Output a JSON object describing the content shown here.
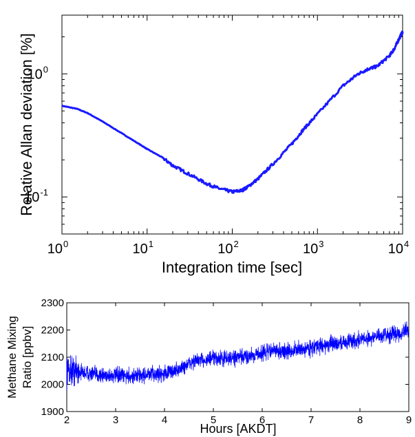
{
  "chart_data": [
    {
      "type": "line",
      "scale": {
        "x": "log",
        "y": "log"
      },
      "xlabel": "Integration time [sec]",
      "ylabel": "Relative Allan deviation [%]",
      "xlim": [
        1,
        10000
      ],
      "ylim": [
        0.05,
        3
      ],
      "x_ticks": [
        {
          "value": 1,
          "base": "10",
          "exp": "0"
        },
        {
          "value": 10,
          "base": "10",
          "exp": "1"
        },
        {
          "value": 100,
          "base": "10",
          "exp": "2"
        },
        {
          "value": 1000,
          "base": "10",
          "exp": "3"
        },
        {
          "value": 10000,
          "base": "10",
          "exp": "4"
        }
      ],
      "y_ticks": [
        {
          "value": 0.1,
          "base": "10",
          "exp": "-1"
        },
        {
          "value": 1,
          "base": "10",
          "exp": "0"
        }
      ],
      "color": "#1a1aff",
      "grid": false,
      "series": [
        {
          "x": [
            1,
            1.5,
            2,
            3,
            5,
            8,
            10,
            15,
            20,
            30,
            50,
            70,
            100,
            130,
            150,
            200,
            300,
            500,
            700,
            1000,
            2000,
            3000,
            4000,
            5000,
            7000,
            8000,
            9000,
            10000
          ],
          "y": [
            0.55,
            0.52,
            0.48,
            0.41,
            0.33,
            0.27,
            0.245,
            0.21,
            0.18,
            0.155,
            0.128,
            0.117,
            0.11,
            0.113,
            0.12,
            0.14,
            0.185,
            0.27,
            0.36,
            0.47,
            0.8,
            1.0,
            1.1,
            1.15,
            1.4,
            1.6,
            1.9,
            2.2
          ]
        }
      ]
    },
    {
      "type": "line",
      "xlabel": "Hours [AKDT]",
      "ylabel": [
        "Methane Mixing",
        "Ratio [ppbv]"
      ],
      "xlim": [
        2,
        9
      ],
      "ylim": [
        1900,
        2300
      ],
      "x_ticks": [
        2,
        3,
        4,
        5,
        6,
        7,
        8,
        9
      ],
      "y_ticks": [
        1900,
        2000,
        2100,
        2200,
        2300
      ],
      "color": "#0000ff",
      "grid": false,
      "noise": "high-frequency scatter of roughly ±30 ppbv around the trend",
      "series": [
        {
          "x": [
            2,
            2.3,
            2.6,
            3,
            3.3,
            3.6,
            4,
            4.3,
            4.6,
            5,
            5.3,
            5.6,
            6,
            6.2,
            6.5,
            7,
            7.5,
            8,
            8.5,
            9
          ],
          "y": [
            2055,
            2045,
            2035,
            2032,
            2030,
            2035,
            2040,
            2055,
            2085,
            2095,
            2095,
            2100,
            2115,
            2125,
            2120,
            2135,
            2150,
            2165,
            2180,
            2195
          ]
        }
      ]
    }
  ]
}
